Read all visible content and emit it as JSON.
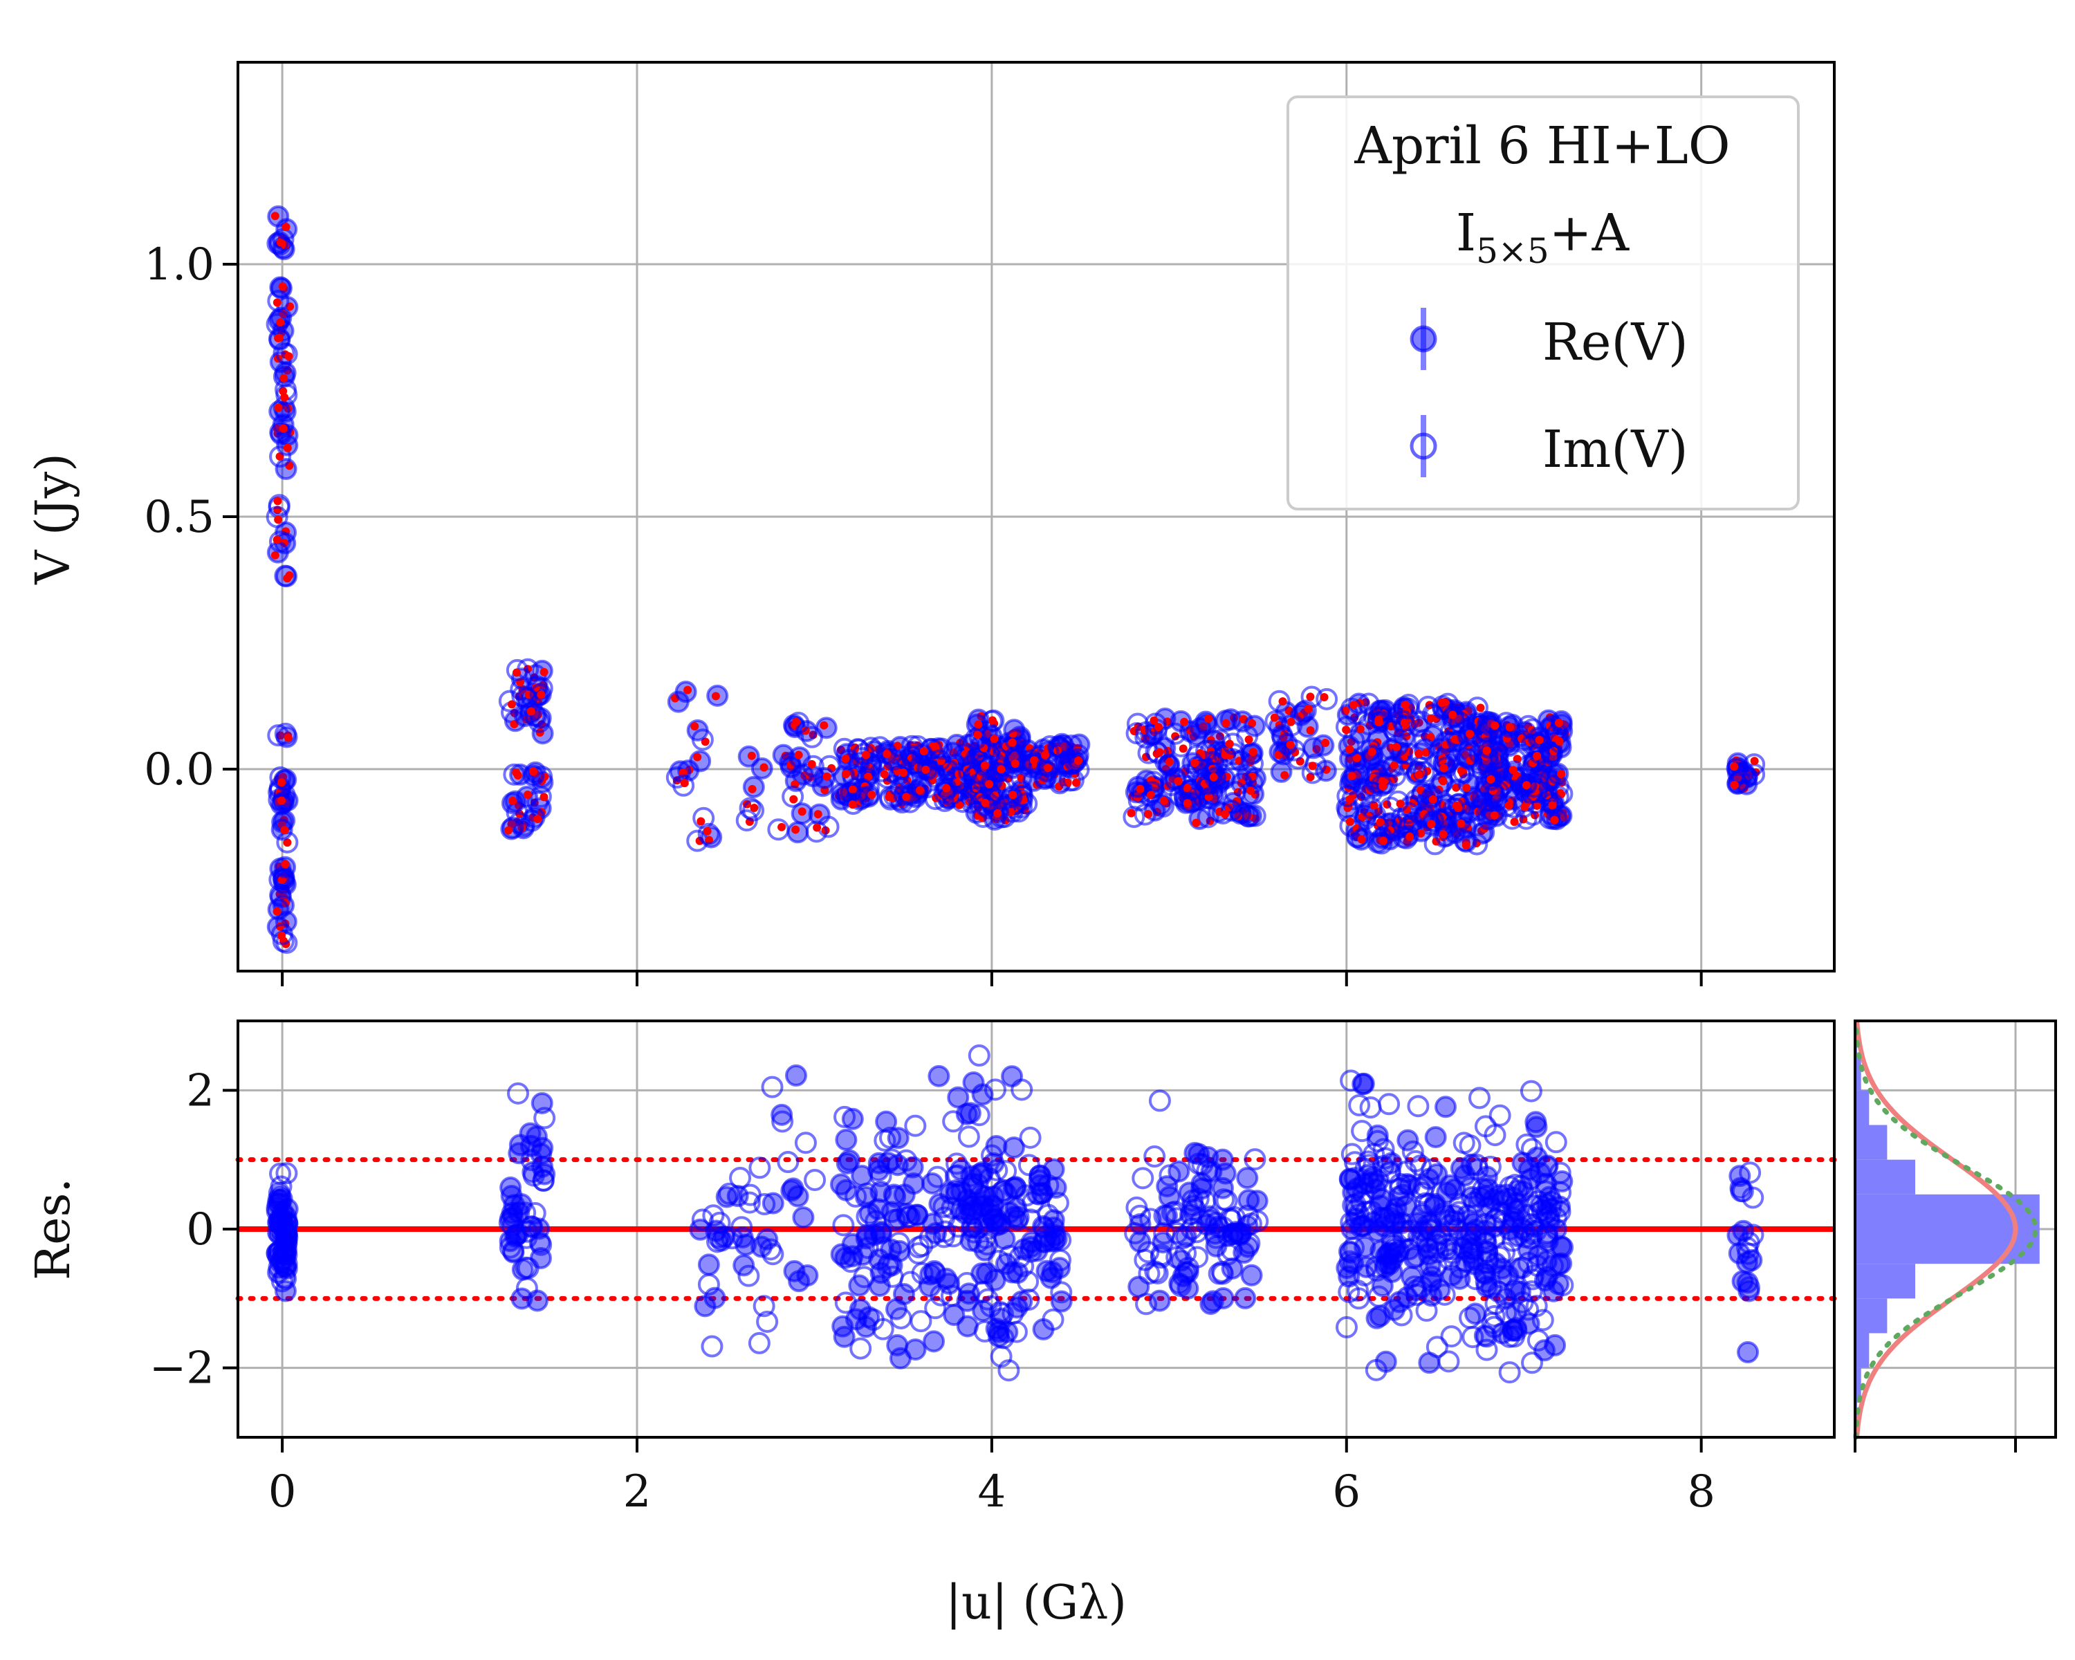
{
  "colors": {
    "data": "#0000ff",
    "model": "#ff0000",
    "grid": "#b0b0b0",
    "hist": "#8080ff",
    "gauss": "#f08080",
    "gauss_dotted": "#5fa85f"
  },
  "chart_data": [
    {
      "type": "scatter",
      "id": "top",
      "ylabel": "V (Jy)",
      "xlim": [
        -0.25,
        8.75
      ],
      "ylim": [
        -0.4,
        1.4
      ],
      "xticks": [
        0,
        2,
        4,
        6,
        8
      ],
      "yticks": [
        0.0,
        0.5,
        1.0
      ],
      "ytick_labels": [
        "0.0",
        "0.5",
        "1.0"
      ],
      "grid": true,
      "legend": {
        "placement": "top-right",
        "title_line1": "April 6 HI+LO",
        "title_line2_main": "I",
        "title_line2_sub": "5×5",
        "title_line2_rest": "+A",
        "entries": [
          "Re(V)",
          "Im(V)"
        ]
      },
      "clusters": [
        {
          "x": 0.0,
          "dx": 0.03,
          "y_ranges": [
            [
              0.35,
              1.1
            ],
            [
              -0.35,
              0.08
            ]
          ],
          "count": 80
        },
        {
          "x": 1.38,
          "dx": 0.1,
          "y_ranges": [
            [
              0.07,
              0.2
            ],
            [
              -0.12,
              0.0
            ]
          ],
          "count": 45
        },
        {
          "x": 2.35,
          "dx": 0.15,
          "y_ranges": [
            [
              -0.15,
              0.16
            ]
          ],
          "count": 14
        },
        {
          "x": 2.85,
          "dx": 0.25,
          "y_ranges": [
            [
              -0.13,
              0.1
            ]
          ],
          "count": 30
        },
        {
          "x": 3.6,
          "dx": 0.45,
          "y_ranges": [
            [
              -0.07,
              0.05
            ]
          ],
          "count": 140
        },
        {
          "x": 4.05,
          "dx": 0.15,
          "y_ranges": [
            [
              -0.1,
              0.1
            ]
          ],
          "count": 70
        },
        {
          "x": 4.35,
          "dx": 0.15,
          "y_ranges": [
            [
              -0.03,
              0.05
            ]
          ],
          "count": 40
        },
        {
          "x": 5.15,
          "dx": 0.35,
          "y_ranges": [
            [
              -0.1,
              0.1
            ]
          ],
          "count": 120
        },
        {
          "x": 5.75,
          "dx": 0.15,
          "y_ranges": [
            [
              -0.02,
              0.15
            ]
          ],
          "count": 25
        },
        {
          "x": 6.4,
          "dx": 0.4,
          "y_ranges": [
            [
              -0.15,
              0.13
            ]
          ],
          "count": 220
        },
        {
          "x": 7.0,
          "dx": 0.22,
          "y_ranges": [
            [
              -0.1,
              0.1
            ]
          ],
          "count": 130
        },
        {
          "x": 8.25,
          "dx": 0.05,
          "y_ranges": [
            [
              -0.03,
              0.03
            ]
          ],
          "count": 14
        }
      ]
    },
    {
      "type": "scatter",
      "id": "residuals",
      "ylabel": "Res.",
      "xlabel": "|u| (Gλ)",
      "xlim": [
        -0.25,
        8.75
      ],
      "ylim": [
        -3.0,
        3.0
      ],
      "xticks": [
        0,
        2,
        4,
        6,
        8
      ],
      "xtick_labels": [
        "0",
        "2",
        "4",
        "6",
        "8"
      ],
      "yticks": [
        -2,
        0,
        2
      ],
      "ytick_labels": [
        "−2",
        "0",
        "2"
      ],
      "grid": true,
      "reference_lines": {
        "solid": 0,
        "dotted": [
          -1,
          1
        ]
      },
      "clusters": [
        {
          "x": 0.0,
          "dx": 0.03,
          "sigma": 0.6,
          "count": 70
        },
        {
          "x": 1.38,
          "dx": 0.1,
          "sigma": 0.9,
          "count": 50
        },
        {
          "x": 2.7,
          "dx": 0.35,
          "sigma": 1.2,
          "count": 50
        },
        {
          "x": 3.6,
          "dx": 0.45,
          "sigma": 1.1,
          "count": 150
        },
        {
          "x": 4.1,
          "dx": 0.3,
          "sigma": 1.0,
          "count": 120
        },
        {
          "x": 5.15,
          "dx": 0.35,
          "sigma": 0.9,
          "count": 110
        },
        {
          "x": 6.4,
          "dx": 0.4,
          "sigma": 0.9,
          "count": 230
        },
        {
          "x": 7.0,
          "dx": 0.22,
          "sigma": 1.0,
          "count": 140
        },
        {
          "x": 8.25,
          "dx": 0.05,
          "sigma": 0.9,
          "count": 20
        }
      ]
    },
    {
      "type": "bar",
      "id": "residual-histogram",
      "orientation": "horizontal",
      "bin_edges": [
        -3.0,
        -2.5,
        -2.0,
        -1.5,
        -1.0,
        -0.5,
        0.0,
        0.5,
        1.0,
        1.5,
        2.0,
        2.5,
        3.0
      ],
      "densities": [
        0.01,
        0.03,
        0.07,
        0.16,
        0.3,
        0.92,
        0.92,
        0.3,
        0.16,
        0.07,
        0.03,
        0.01
      ],
      "gaussian_sigma": 1.0,
      "dotted_gaussian_sigma": 0.9,
      "xlim": [
        0,
        1.0
      ],
      "ylim": [
        -3.0,
        3.0
      ],
      "xticks": [
        0,
        0.8
      ]
    }
  ]
}
